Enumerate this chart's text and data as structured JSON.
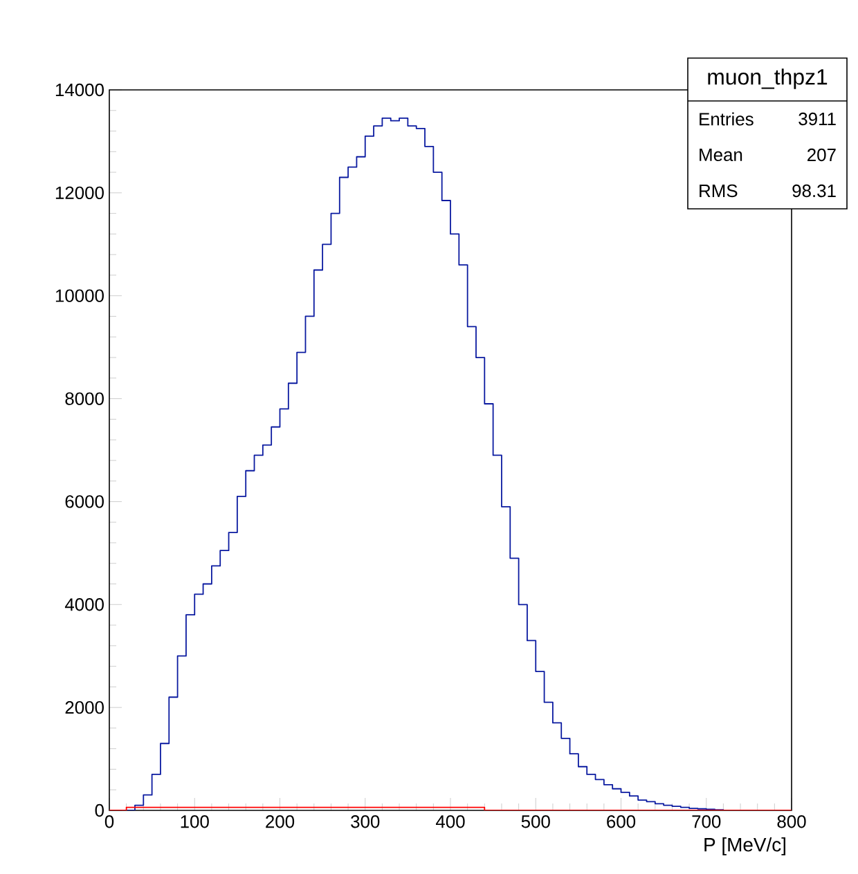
{
  "chart_data": {
    "type": "histogram",
    "xlabel": "P [MeV/c]",
    "xlim": [
      0,
      800
    ],
    "ylim": [
      0,
      14000
    ],
    "xticks": [
      0,
      100,
      200,
      300,
      400,
      500,
      600,
      700,
      800
    ],
    "yticks": [
      0,
      2000,
      4000,
      6000,
      8000,
      10000,
      12000,
      14000
    ],
    "bins": [
      0,
      10,
      20,
      30,
      40,
      50,
      60,
      70,
      80,
      90,
      100,
      110,
      120,
      130,
      140,
      150,
      160,
      170,
      180,
      190,
      200,
      210,
      220,
      230,
      240,
      250,
      260,
      270,
      280,
      290,
      300,
      310,
      320,
      330,
      340,
      350,
      360,
      370,
      380,
      390,
      400,
      410,
      420,
      430,
      440,
      450,
      460,
      470,
      480,
      490,
      500,
      510,
      520,
      530,
      540,
      550,
      560,
      570,
      580,
      590,
      600,
      610,
      620,
      630,
      640,
      650,
      660,
      670,
      680,
      690,
      700,
      710,
      720,
      730,
      740,
      750,
      760,
      770,
      780,
      790,
      800
    ],
    "series": [
      {
        "color": "#0a1aa0",
        "values": [
          0,
          0,
          0,
          100,
          300,
          700,
          1300,
          2200,
          3000,
          3800,
          4200,
          4400,
          4750,
          5050,
          5400,
          6100,
          6600,
          6900,
          7100,
          7450,
          7800,
          8300,
          8900,
          9600,
          10500,
          11000,
          11600,
          12300,
          12500,
          12700,
          13100,
          13300,
          13450,
          13400,
          13450,
          13300,
          13250,
          12900,
          12400,
          11850,
          11200,
          10600,
          9400,
          8800,
          7900,
          6900,
          5900,
          4900,
          4000,
          3300,
          2700,
          2100,
          1700,
          1400,
          1100,
          850,
          700,
          600,
          500,
          420,
          350,
          280,
          200,
          170,
          130,
          100,
          80,
          60,
          40,
          30,
          20,
          10,
          0,
          0,
          0,
          0,
          0,
          0,
          0,
          0
        ]
      },
      {
        "color": "#ff0000",
        "values": [
          0,
          0,
          60,
          60,
          60,
          60,
          60,
          60,
          60,
          60,
          60,
          60,
          60,
          60,
          60,
          60,
          60,
          60,
          60,
          60,
          60,
          60,
          60,
          60,
          60,
          60,
          60,
          60,
          60,
          60,
          60,
          60,
          60,
          60,
          60,
          60,
          60,
          60,
          60,
          60,
          60,
          60,
          60,
          60,
          0,
          0,
          0,
          0,
          0,
          0,
          0,
          0,
          0,
          0,
          0,
          0,
          0,
          0,
          0,
          0,
          0,
          0,
          0,
          0,
          0,
          0,
          0,
          0,
          0,
          0,
          0,
          0,
          0,
          0,
          0,
          0,
          0,
          0,
          0,
          0
        ]
      }
    ],
    "annotations": [
      "muon_thpz1",
      "Entries",
      "3911",
      "Mean",
      "207",
      "RMS",
      "98.31"
    ]
  }
}
